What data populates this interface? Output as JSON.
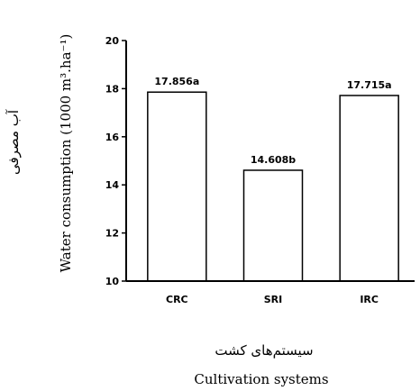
{
  "chart_data": {
    "type": "bar",
    "categories": [
      "CRC",
      "SRI",
      "IRC"
    ],
    "values": [
      17.856,
      14.608,
      17.715
    ],
    "data_labels": [
      "17.856a",
      "14.608b",
      "17.715a"
    ],
    "xlabel_fa": "سیستم‌های کشت",
    "xlabel": "Cultivation systems",
    "ylabel_fa": "آب مصرفی",
    "ylabel": "Water consumption (1000 m³.ha⁻¹)",
    "ylim": [
      10,
      20
    ],
    "yticks": [
      "10",
      "12",
      "14",
      "16",
      "18",
      "20"
    ],
    "grid": false,
    "bar_fill": "#ffffff",
    "bar_stroke": "#000000"
  }
}
